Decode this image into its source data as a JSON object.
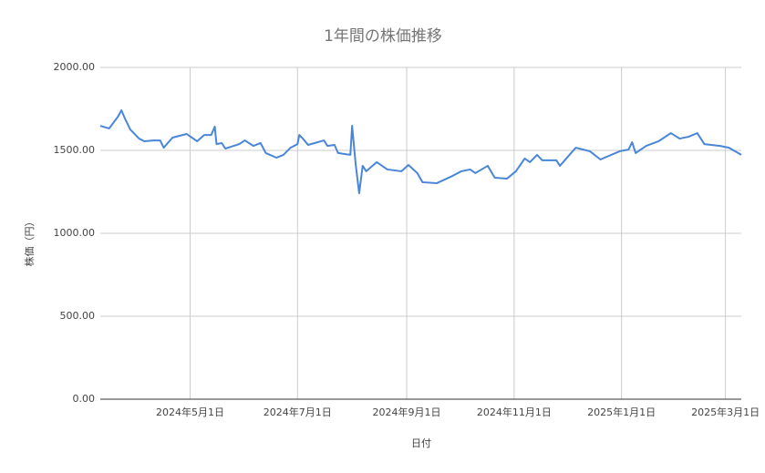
{
  "chart_data": {
    "type": "line",
    "title": "1年間の株価推移",
    "x_label": "日付",
    "y_label": "株価（円）",
    "x": [
      "2024-03-11",
      "2024-03-16",
      "2024-03-21",
      "2024-03-23",
      "2024-03-25",
      "2024-03-28",
      "2024-04-02",
      "2024-04-05",
      "2024-04-10",
      "2024-04-14",
      "2024-04-16",
      "2024-04-21",
      "2024-04-29",
      "2024-05-05",
      "2024-05-09",
      "2024-05-13",
      "2024-05-15",
      "2024-05-16",
      "2024-05-19",
      "2024-05-21",
      "2024-05-29",
      "2024-06-01",
      "2024-06-06",
      "2024-06-10",
      "2024-06-13",
      "2024-06-19",
      "2024-06-23",
      "2024-06-27",
      "2024-07-01",
      "2024-07-02",
      "2024-07-04",
      "2024-07-07",
      "2024-07-16",
      "2024-07-18",
      "2024-07-22",
      "2024-07-24",
      "2024-07-31",
      "2024-08-01",
      "2024-08-03",
      "2024-08-05",
      "2024-08-07",
      "2024-08-09",
      "2024-08-15",
      "2024-08-21",
      "2024-08-29",
      "2024-09-02",
      "2024-09-07",
      "2024-09-10",
      "2024-09-18",
      "2024-09-27",
      "2024-10-02",
      "2024-10-07",
      "2024-10-10",
      "2024-10-17",
      "2024-10-21",
      "2024-10-28",
      "2024-11-02",
      "2024-11-07",
      "2024-11-10",
      "2024-11-14",
      "2024-11-17",
      "2024-11-25",
      "2024-11-27",
      "2024-12-06",
      "2024-12-14",
      "2024-12-20",
      "2024-12-31",
      "2025-01-05",
      "2025-01-07",
      "2025-01-09",
      "2025-01-15",
      "2025-01-22",
      "2025-01-29",
      "2025-02-03",
      "2025-02-08",
      "2025-02-13",
      "2025-02-17",
      "2025-02-26",
      "2025-03-03",
      "2025-03-10"
    ],
    "series": [
      {
        "color": "#4a86d8",
        "values": [
          1648,
          1632,
          1703,
          1742,
          1692,
          1626,
          1571,
          1555,
          1560,
          1560,
          1516,
          1577,
          1599,
          1555,
          1593,
          1593,
          1643,
          1538,
          1544,
          1511,
          1538,
          1560,
          1527,
          1544,
          1484,
          1456,
          1473,
          1516,
          1538,
          1593,
          1571,
          1533,
          1560,
          1527,
          1533,
          1484,
          1473,
          1648,
          1418,
          1242,
          1407,
          1374,
          1429,
          1385,
          1374,
          1412,
          1363,
          1308,
          1302,
          1346,
          1374,
          1385,
          1363,
          1407,
          1335,
          1330,
          1374,
          1451,
          1429,
          1473,
          1440,
          1440,
          1407,
          1516,
          1495,
          1445,
          1495,
          1505,
          1549,
          1484,
          1527,
          1555,
          1604,
          1571,
          1582,
          1604,
          1538,
          1527,
          1516,
          1473
        ]
      }
    ],
    "xlim": [
      "2024-03-11",
      "2025-03-10"
    ],
    "xticks": [
      {
        "value": "2024-05-01",
        "label": "2024年5月1日"
      },
      {
        "value": "2024-07-01",
        "label": "2024年7月1日"
      },
      {
        "value": "2024-09-01",
        "label": "2024年9月1日"
      },
      {
        "value": "2024-11-01",
        "label": "2024年11月1日"
      },
      {
        "value": "2025-01-01",
        "label": "2025年1月1日"
      },
      {
        "value": "2025-03-01",
        "label": "2025年3月1日"
      }
    ],
    "ylim": [
      0,
      2000
    ],
    "yticks": [
      {
        "value": 0,
        "label": "0.00"
      },
      {
        "value": 500,
        "label": "500.00"
      },
      {
        "value": 1000,
        "label": "1000.00"
      },
      {
        "value": 1500,
        "label": "1500.00"
      },
      {
        "value": 2000,
        "label": "2000.00"
      }
    ],
    "grid": true
  }
}
